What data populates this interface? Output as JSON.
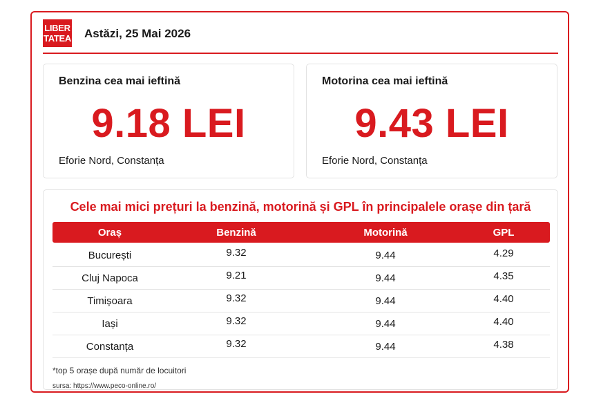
{
  "header": {
    "logo_line1": "LIBER",
    "logo_line2": "TATEA",
    "date": "Astăzi, 25 Mai 2026"
  },
  "cards": [
    {
      "title": "Benzina cea mai ieftină",
      "price": "9.18 LEI",
      "location": "Eforie Nord, Constanța"
    },
    {
      "title": "Motorina cea mai ieftină",
      "price": "9.43 LEI",
      "location": "Eforie Nord, Constanța"
    }
  ],
  "table": {
    "title": "Cele mai mici prețuri la benzină, motorină și GPL în principalele orașe din țară",
    "columns": [
      "Oraș",
      "Benzină",
      "Motorină",
      "GPL"
    ],
    "rows": [
      [
        "București",
        "9.32",
        "9.44",
        "4.29"
      ],
      [
        "Cluj Napoca",
        "9.21",
        "9.44",
        "4.35"
      ],
      [
        "Timișoara",
        "9.32",
        "9.44",
        "4.40"
      ],
      [
        "Iași",
        "9.32",
        "9.44",
        "4.40"
      ],
      [
        "Constanța",
        "9.32",
        "9.44",
        "4.38"
      ]
    ],
    "footnote": "*top 5 orașe după număr de locuitori",
    "source": "sursa: https://www.peco-online.ro/"
  },
  "colors": {
    "accent": "#d91a1f"
  }
}
